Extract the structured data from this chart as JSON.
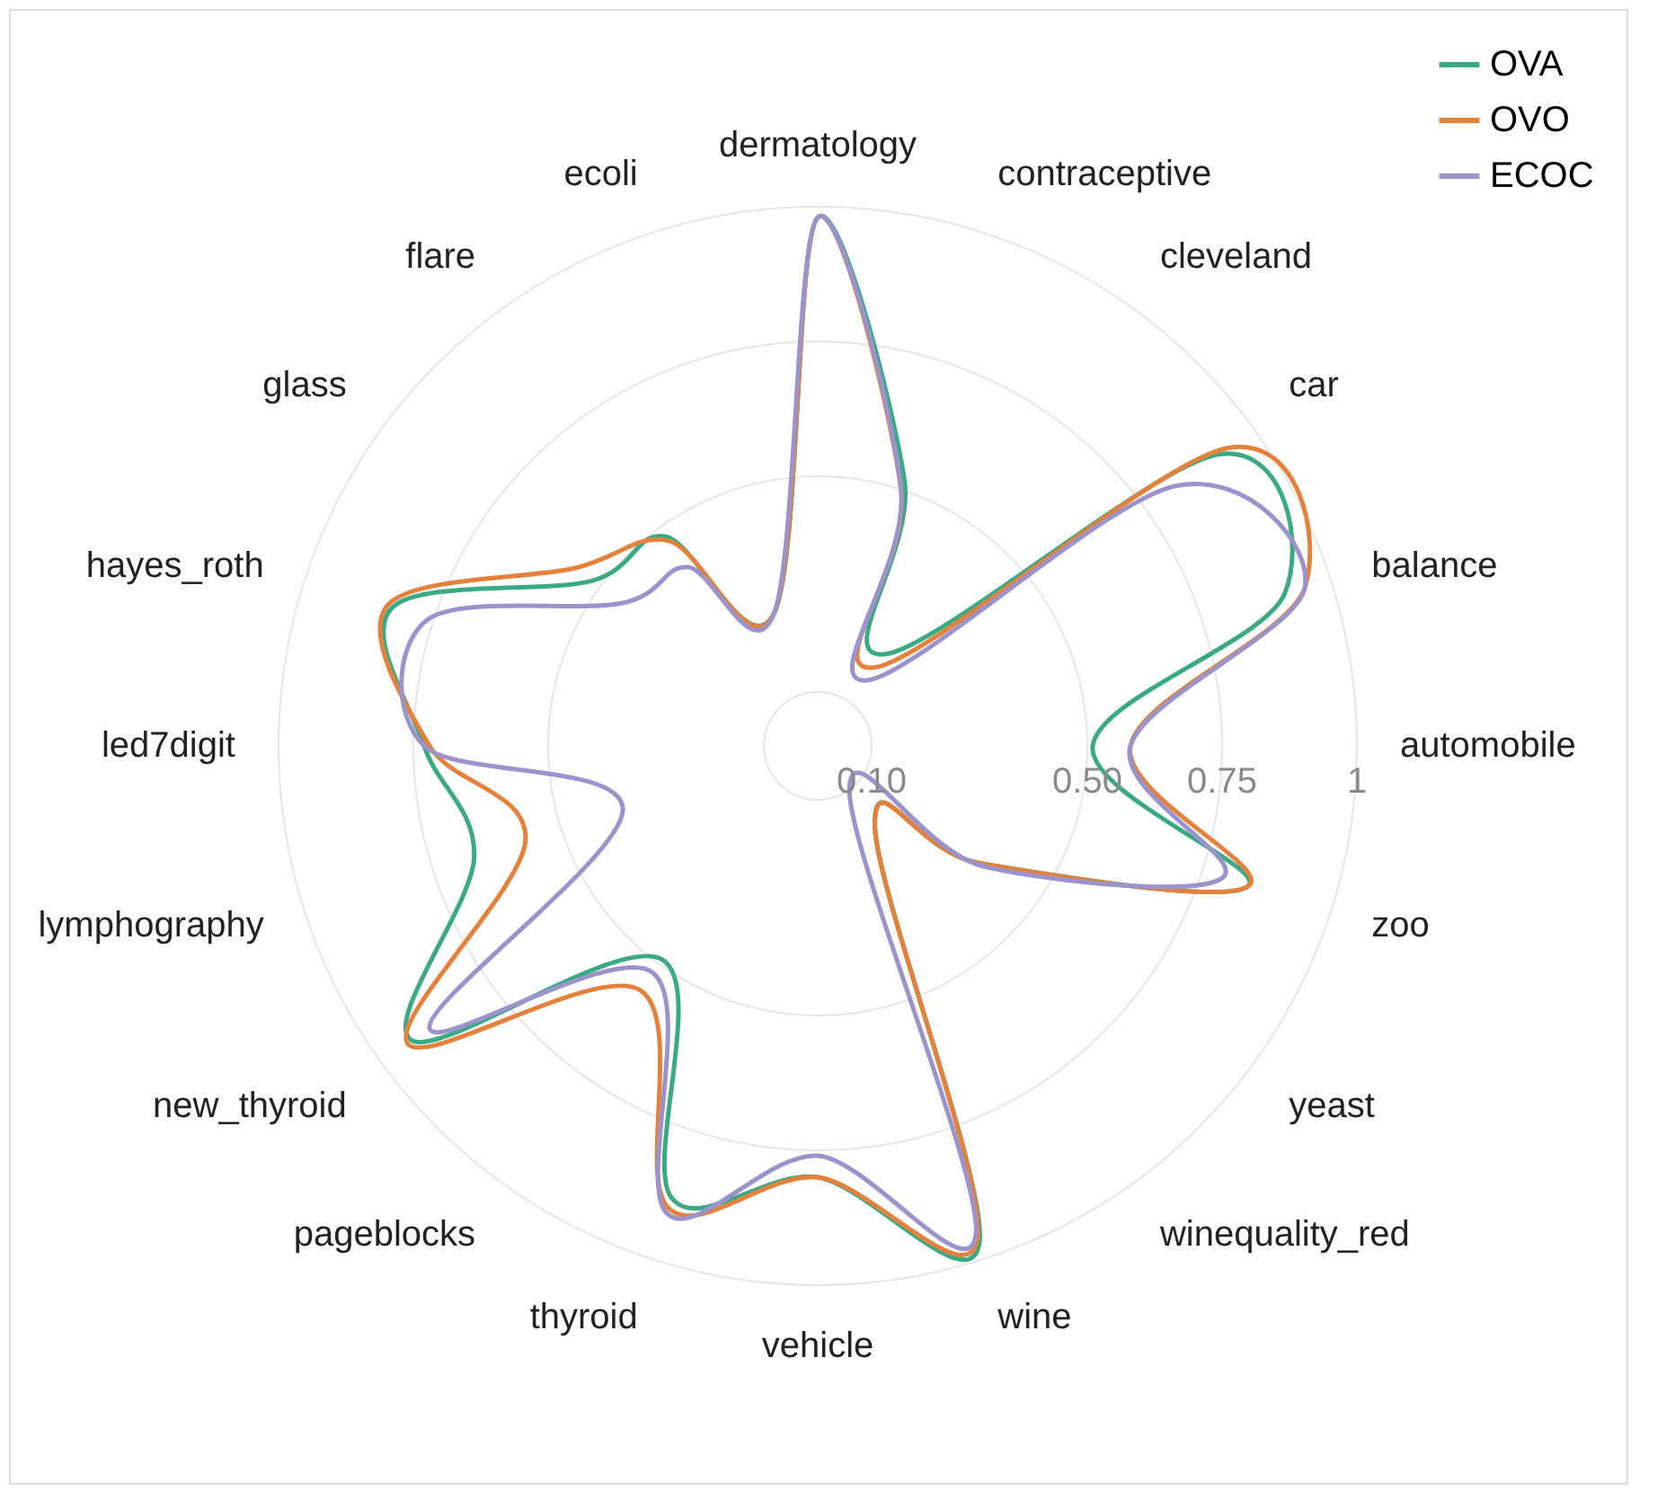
{
  "chart_data": {
    "type": "radar",
    "categories": [
      "dermatology",
      "contraceptive",
      "cleveland",
      "car",
      "balance",
      "automobile",
      "zoo",
      "yeast",
      "winequality_red",
      "wine",
      "vehicle",
      "thyroid",
      "pageblocks",
      "new_thyroid",
      "lymphography",
      "led7digit",
      "hayes_roth",
      "glass",
      "flare",
      "ecoli"
    ],
    "series": [
      {
        "name": "OVA",
        "color": "#3aaa85",
        "values": [
          0.98,
          0.52,
          0.21,
          0.92,
          0.91,
          0.51,
          0.84,
          0.37,
          0.18,
          0.97,
          0.8,
          0.88,
          0.49,
          0.93,
          0.67,
          0.73,
          0.83,
          0.52,
          0.48,
          0.26
        ]
      },
      {
        "name": "OVO",
        "color": "#e5813a",
        "values": [
          0.98,
          0.5,
          0.18,
          0.94,
          0.95,
          0.58,
          0.84,
          0.37,
          0.18,
          0.96,
          0.8,
          0.9,
          0.56,
          0.94,
          0.57,
          0.72,
          0.84,
          0.56,
          0.47,
          0.26
        ]
      },
      {
        "name": "ECOC",
        "color": "#9a93cc",
        "values": [
          0.98,
          0.5,
          0.15,
          0.82,
          0.95,
          0.58,
          0.79,
          0.38,
          0.1,
          0.95,
          0.76,
          0.91,
          0.52,
          0.89,
          0.38,
          0.73,
          0.76,
          0.45,
          0.41,
          0.26
        ]
      }
    ],
    "ylim": [
      0,
      1
    ],
    "yticks": [
      {
        "value": 0.1,
        "label": "0.10"
      },
      {
        "value": 0.5,
        "label": "0.50"
      },
      {
        "value": 0.75,
        "label": "0.75"
      },
      {
        "value": 1,
        "label": "1"
      }
    ],
    "grid": true,
    "legend": "top right"
  }
}
